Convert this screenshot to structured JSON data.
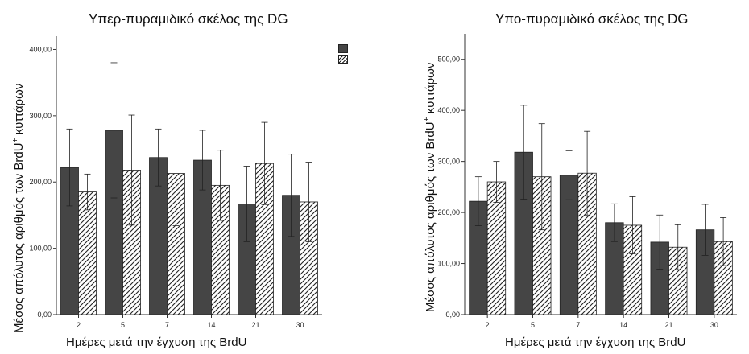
{
  "chart_data": [
    {
      "type": "bar",
      "title": "Υπερ-πυραμιδικό σκέλος της DG",
      "xlabel": "Ημέρες μετά την έγχυση της BrdU",
      "ylabel": "Μέσος απόλυτος αριθμός των BrdU",
      "ylabel_sup": "+",
      "ylabel_suffix": " κυττάρων",
      "categories": [
        "2",
        "5",
        "7",
        "14",
        "21",
        "30"
      ],
      "ylim": [
        0,
        420
      ],
      "yticks": [
        "0,00",
        "100,00",
        "200,00",
        "300,00",
        "400,00"
      ],
      "ytick_values": [
        0,
        100,
        200,
        300,
        400
      ],
      "legend": "top-right",
      "series": [
        {
          "style": "solid",
          "color": "#454545",
          "values": [
            222,
            278,
            237,
            233,
            167,
            180
          ],
          "errors": [
            58,
            102,
            43,
            45,
            57,
            62
          ]
        },
        {
          "style": "hatched",
          "color": "#ffffff",
          "values": [
            185,
            218,
            213,
            195,
            228,
            170
          ],
          "errors": [
            27,
            83,
            79,
            53,
            62,
            60
          ]
        }
      ]
    },
    {
      "type": "bar",
      "title": "Υπο-πυραμιδικό σκέλος της DG",
      "xlabel": "Ημέρες μετά την έγχυση της BrdU",
      "ylabel": "Μέσος απόλυτος αριθμός των BrdU",
      "ylabel_sup": "+",
      "ylabel_suffix": " κυττάρων",
      "categories": [
        "2",
        "5",
        "7",
        "14",
        "21",
        "30"
      ],
      "ylim": [
        0,
        550
      ],
      "yticks": [
        "0,00",
        "100,00",
        "200,00",
        "300,00",
        "400,00",
        "500,00"
      ],
      "ytick_values": [
        0,
        100,
        200,
        300,
        400,
        500
      ],
      "series": [
        {
          "style": "solid",
          "color": "#454545",
          "values": [
            222,
            318,
            273,
            180,
            142,
            166
          ],
          "errors": [
            48,
            92,
            48,
            37,
            53,
            50
          ]
        },
        {
          "style": "hatched",
          "color": "#ffffff",
          "values": [
            260,
            270,
            277,
            175,
            132,
            143
          ],
          "errors": [
            40,
            104,
            82,
            56,
            44,
            47
          ]
        }
      ]
    }
  ]
}
